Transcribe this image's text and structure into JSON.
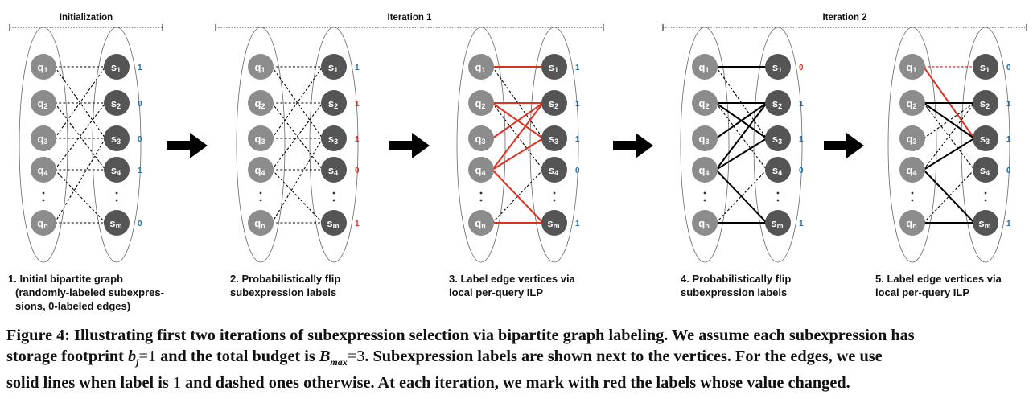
{
  "sections": [
    {
      "title": "Initialization"
    },
    {
      "title": "Iteration 1"
    },
    {
      "title": "Iteration 2"
    }
  ],
  "node_names": {
    "q": [
      {
        "base": "q",
        "sub": "1"
      },
      {
        "base": "q",
        "sub": "2"
      },
      {
        "base": "q",
        "sub": "3"
      },
      {
        "base": "q",
        "sub": "4"
      },
      {
        "base": "q",
        "sub": "n"
      }
    ],
    "s": [
      {
        "base": "s",
        "sub": "1"
      },
      {
        "base": "s",
        "sub": "2"
      },
      {
        "base": "s",
        "sub": "3"
      },
      {
        "base": "s",
        "sub": "4"
      },
      {
        "base": "s",
        "sub": "m"
      }
    ]
  },
  "colors": {
    "q_node": "#8c8c8c",
    "s_node": "#555555",
    "label_blue": "#1c6fa8",
    "label_red": "#e03020",
    "edge_red": "#e03020",
    "edge_black": "#000000"
  },
  "panels": [
    {
      "caption": [
        "1. Initial bipartite graph",
        "(randomly-labeled subexpres-",
        "sions, 0-labeled edges)"
      ],
      "labels": [
        {
          "value": "1",
          "color": "blue"
        },
        {
          "value": "0",
          "color": "blue"
        },
        {
          "value": "0",
          "color": "blue"
        },
        {
          "value": "1",
          "color": "blue"
        },
        {
          "value": "0",
          "color": "blue"
        }
      ],
      "edges": [
        {
          "q": 0,
          "s": 0,
          "style": "dashed"
        },
        {
          "q": 0,
          "s": 2,
          "style": "dashed"
        },
        {
          "q": 1,
          "s": 1,
          "style": "dashed"
        },
        {
          "q": 1,
          "s": 3,
          "style": "dashed"
        },
        {
          "q": 2,
          "s": 0,
          "style": "dashed"
        },
        {
          "q": 2,
          "s": 2,
          "style": "dashed"
        },
        {
          "q": 3,
          "s": 1,
          "style": "dashed"
        },
        {
          "q": 3,
          "s": 3,
          "style": "dashed"
        },
        {
          "q": 3,
          "s": 4,
          "style": "dashed"
        },
        {
          "q": 4,
          "s": 2,
          "style": "dashed"
        },
        {
          "q": 4,
          "s": 4,
          "style": "dashed"
        }
      ]
    },
    {
      "caption": [
        "2. Probabilistically flip",
        "subexpression labels"
      ],
      "labels": [
        {
          "value": "1",
          "color": "blue"
        },
        {
          "value": "1",
          "color": "red"
        },
        {
          "value": "1",
          "color": "red"
        },
        {
          "value": "0",
          "color": "red"
        },
        {
          "value": "1",
          "color": "red"
        }
      ],
      "edges": [
        {
          "q": 0,
          "s": 0,
          "style": "dashed"
        },
        {
          "q": 0,
          "s": 2,
          "style": "dashed"
        },
        {
          "q": 1,
          "s": 1,
          "style": "dashed"
        },
        {
          "q": 1,
          "s": 3,
          "style": "dashed"
        },
        {
          "q": 2,
          "s": 0,
          "style": "dashed"
        },
        {
          "q": 2,
          "s": 2,
          "style": "dashed"
        },
        {
          "q": 3,
          "s": 1,
          "style": "dashed"
        },
        {
          "q": 3,
          "s": 3,
          "style": "dashed"
        },
        {
          "q": 3,
          "s": 4,
          "style": "dashed"
        },
        {
          "q": 4,
          "s": 2,
          "style": "dashed"
        },
        {
          "q": 4,
          "s": 4,
          "style": "dashed"
        }
      ]
    },
    {
      "caption": [
        "3. Label edge vertices via",
        "local per-query ILP"
      ],
      "labels": [
        {
          "value": "1",
          "color": "blue"
        },
        {
          "value": "1",
          "color": "blue"
        },
        {
          "value": "1",
          "color": "blue"
        },
        {
          "value": "0",
          "color": "blue"
        },
        {
          "value": "1",
          "color": "blue"
        }
      ],
      "edges": [
        {
          "q": 0,
          "s": 0,
          "style": "solid-red"
        },
        {
          "q": 0,
          "s": 2,
          "style": "dashed"
        },
        {
          "q": 1,
          "s": 1,
          "style": "solid-red"
        },
        {
          "q": 1,
          "s": 2,
          "style": "solid-red"
        },
        {
          "q": 1,
          "s": 3,
          "style": "dashed"
        },
        {
          "q": 2,
          "s": 1,
          "style": "solid-red"
        },
        {
          "q": 3,
          "s": 1,
          "style": "solid-red"
        },
        {
          "q": 3,
          "s": 2,
          "style": "solid-red"
        },
        {
          "q": 3,
          "s": 4,
          "style": "solid-red"
        },
        {
          "q": 4,
          "s": 3,
          "style": "dashed"
        },
        {
          "q": 4,
          "s": 4,
          "style": "solid-red"
        }
      ]
    },
    {
      "caption": [
        "4. Probabilistically flip",
        "subexpression labels"
      ],
      "labels": [
        {
          "value": "0",
          "color": "red"
        },
        {
          "value": "1",
          "color": "blue"
        },
        {
          "value": "1",
          "color": "blue"
        },
        {
          "value": "0",
          "color": "blue"
        },
        {
          "value": "1",
          "color": "blue"
        }
      ],
      "edges": [
        {
          "q": 0,
          "s": 0,
          "style": "solid"
        },
        {
          "q": 0,
          "s": 2,
          "style": "dashed"
        },
        {
          "q": 1,
          "s": 1,
          "style": "solid"
        },
        {
          "q": 1,
          "s": 2,
          "style": "solid"
        },
        {
          "q": 1,
          "s": 3,
          "style": "dashed"
        },
        {
          "q": 2,
          "s": 1,
          "style": "solid"
        },
        {
          "q": 3,
          "s": 1,
          "style": "solid"
        },
        {
          "q": 3,
          "s": 2,
          "style": "solid"
        },
        {
          "q": 3,
          "s": 4,
          "style": "solid"
        },
        {
          "q": 4,
          "s": 3,
          "style": "dashed"
        },
        {
          "q": 4,
          "s": 4,
          "style": "solid"
        }
      ]
    },
    {
      "caption": [
        "5. Label edge vertices via",
        "local per-query ILP"
      ],
      "labels": [
        {
          "value": "0",
          "color": "blue"
        },
        {
          "value": "1",
          "color": "blue"
        },
        {
          "value": "1",
          "color": "blue"
        },
        {
          "value": "0",
          "color": "blue"
        },
        {
          "value": "1",
          "color": "blue"
        }
      ],
      "edges": [
        {
          "q": 0,
          "s": 0,
          "style": "dashed-red"
        },
        {
          "q": 0,
          "s": 2,
          "style": "solid-red"
        },
        {
          "q": 1,
          "s": 1,
          "style": "solid"
        },
        {
          "q": 1,
          "s": 2,
          "style": "solid"
        },
        {
          "q": 1,
          "s": 3,
          "style": "dashed"
        },
        {
          "q": 2,
          "s": 1,
          "style": "dashed"
        },
        {
          "q": 3,
          "s": 1,
          "style": "dashed"
        },
        {
          "q": 3,
          "s": 2,
          "style": "solid"
        },
        {
          "q": 3,
          "s": 4,
          "style": "solid"
        },
        {
          "q": 4,
          "s": 3,
          "style": "dashed"
        },
        {
          "q": 4,
          "s": 4,
          "style": "solid"
        }
      ]
    }
  ],
  "figure_caption": {
    "label": "Figure 4:",
    "lines": [
      [
        {
          "t": " Illustrating first two iterations of subexpression selection via bipartite graph labeling. We assume each subexpression has"
        }
      ],
      [
        {
          "t": "storage footprint "
        },
        {
          "t": "b",
          "i": true
        },
        {
          "t": "j",
          "sub": true
        },
        {
          "t": "=1",
          "m": true
        },
        {
          "t": " and the total budget is "
        },
        {
          "t": "B",
          "i": true
        },
        {
          "t": "max",
          "sub": true
        },
        {
          "t": "=3",
          "m": true
        },
        {
          "t": ". Subexpression labels are shown next to the vertices. For the edges, we use"
        }
      ],
      [
        {
          "t": "solid lines when label is "
        },
        {
          "t": "1",
          "m": true
        },
        {
          "t": " and dashed ones otherwise. At each iteration, we mark with red the labels whose value changed."
        }
      ]
    ]
  }
}
